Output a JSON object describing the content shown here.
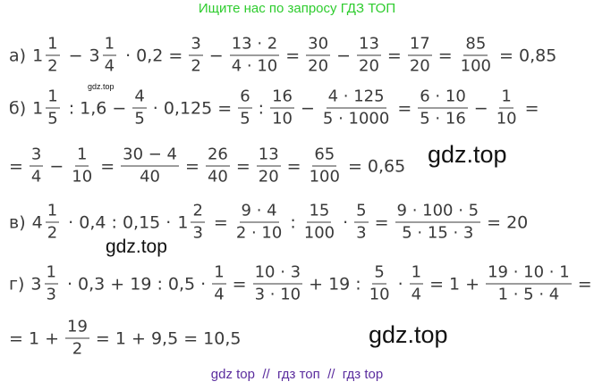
{
  "header": "Ищите нас по запросу ГДЗ ТОП",
  "lines": [
    {
      "tokens": [
        "а)",
        {
          "whole": "1",
          "num": "1",
          "den": "2"
        },
        "−",
        {
          "whole": "3",
          "num": "1",
          "den": "4"
        },
        "· 0,2 =",
        {
          "num": "3",
          "den": "2"
        },
        "−",
        {
          "num": "13 · 2",
          "den": "4 · 10"
        },
        "=",
        {
          "num": "30",
          "den": "20"
        },
        "−",
        {
          "num": "13",
          "den": "20"
        },
        "=",
        {
          "num": "17",
          "den": "20"
        },
        "=",
        {
          "num": "85",
          "den": "100"
        },
        "= 0,85"
      ]
    },
    {
      "tokens": [
        "б)",
        {
          "whole": "1",
          "num": "1",
          "den": "5"
        },
        ": 1,6 −",
        {
          "num": "4",
          "den": "5"
        },
        "· 0,125 =",
        {
          "num": "6",
          "den": "5"
        },
        ":",
        {
          "num": "16",
          "den": "10"
        },
        "−",
        {
          "num": "4 · 125",
          "den": "5 · 1000"
        },
        "=",
        {
          "num": "6 · 10",
          "den": "5 · 16"
        },
        "−",
        {
          "num": "1",
          "den": "10"
        },
        "="
      ]
    },
    {
      "tokens": [
        "=",
        {
          "num": "3",
          "den": "4"
        },
        "−",
        {
          "num": "1",
          "den": "10"
        },
        "=",
        {
          "num": "30 − 4",
          "den": "40"
        },
        "=",
        {
          "num": "26",
          "den": "40"
        },
        "=",
        {
          "num": "13",
          "den": "20"
        },
        "=",
        {
          "num": "65",
          "den": "100"
        },
        "= 0,65"
      ]
    },
    {
      "tokens": [
        "в)",
        {
          "whole": "4",
          "num": "1",
          "den": "2"
        },
        "· 0,4 : 0,15 ·",
        {
          "whole": "1",
          "num": "2",
          "den": "3"
        },
        "=",
        {
          "num": "9 · 4",
          "den": "2 · 10"
        },
        ":",
        {
          "num": "15",
          "den": "100"
        },
        "·",
        {
          "num": "5",
          "den": "3"
        },
        "=",
        {
          "num": "9 · 100 · 5",
          "den": "5 · 15 · 3"
        },
        "= 20"
      ]
    },
    {
      "tokens": [
        "г)",
        {
          "whole": "3",
          "num": "1",
          "den": "3"
        },
        "· 0,3 + 19 : 0,5 ·",
        {
          "num": "1",
          "den": "4"
        },
        "=",
        {
          "num": "10 · 3",
          "den": "3 · 10"
        },
        "+ 19 :",
        {
          "num": "5",
          "den": "10"
        },
        "·",
        {
          "num": "1",
          "den": "4"
        },
        "= 1 +",
        {
          "num": "19 · 10 · 1",
          "den": "1 · 5 · 4"
        },
        "="
      ]
    },
    {
      "tokens": [
        "= 1 +",
        {
          "num": "19",
          "den": "2"
        },
        "= 1 + 9,5 = 10,5"
      ]
    }
  ],
  "watermarks": [
    "gdz.top",
    "gdz.top",
    "gdz.top",
    "gdz.top"
  ],
  "footer": "gdz top  //  гдз топ  //  гдз top"
}
